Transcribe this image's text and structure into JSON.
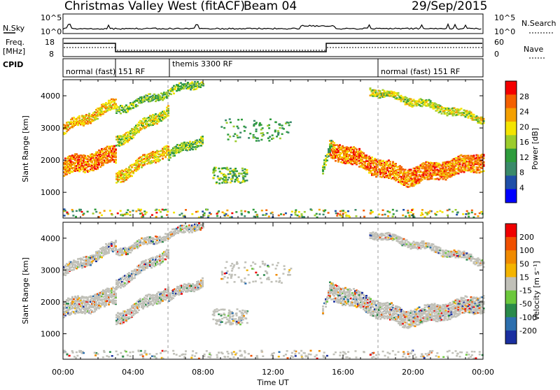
{
  "header": {
    "station": "Christmas Valley West (fitACF)",
    "beam": "Beam 04",
    "date": "29/Sep/2015"
  },
  "noise_panel": {
    "left_label": "N.Sky",
    "right_label": "N.Search",
    "left_ticks": [
      "10^5",
      "10^0"
    ],
    "right_ticks": [
      "10^5",
      "10^0"
    ]
  },
  "freq_panel": {
    "left_label_1": "Freq.",
    "left_label_2": "[MHz]",
    "right_label": "Nave",
    "left_ticks": [
      "18",
      "8"
    ],
    "right_ticks": [
      "60",
      "0"
    ]
  },
  "cpid": {
    "label": "CPID",
    "segments": [
      {
        "name": "normal (fast) 151 RF",
        "start_h": 0,
        "end_h": 3
      },
      {
        "name": "themis 3300 RF",
        "start_h": 6,
        "end_h": 18
      },
      {
        "name": "normal (fast) 151 RF",
        "start_h": 18,
        "end_h": 24
      }
    ]
  },
  "colors": {
    "power_scale": [
      "#0000ff",
      "#1f4fa8",
      "#3a8a6a",
      "#2e9c3c",
      "#9ccc2c",
      "#f4e400",
      "#f4a000",
      "#f46000",
      "#f40000"
    ],
    "velocity_scale": [
      "#1a2fa0",
      "#2d6fae",
      "#2a8a4a",
      "#6cc83c",
      "#c0c0b8",
      "#f4b400",
      "#f08a00",
      "#f05000",
      "#f00000"
    ]
  },
  "chart_data": [
    {
      "type": "heatmap",
      "name": "power",
      "ylabel": "Slant Range [km]",
      "yticks": [
        1000,
        2000,
        3000,
        4000
      ],
      "ylim": [
        200,
        4500
      ],
      "xlim": [
        0,
        24
      ],
      "colorbar_label": "Power [dB]",
      "colorbar_ticks": [
        "28",
        "24",
        "20",
        "16",
        "12",
        "8",
        "4"
      ],
      "clim": [
        0,
        32
      ]
    },
    {
      "type": "heatmap",
      "name": "velocity",
      "ylabel": "Slant Range [km]",
      "yticks": [
        1000,
        2000,
        3000,
        4000
      ],
      "ylim": [
        200,
        4500
      ],
      "xlim": [
        0,
        24
      ],
      "xlabel": "Time UT",
      "xticks": [
        "00:00",
        "04:00",
        "08:00",
        "12:00",
        "16:00",
        "20:00",
        "00:00"
      ],
      "colorbar_label": "Velocity [m s⁻¹]",
      "colorbar_ticks": [
        "200",
        "100",
        "50",
        "15",
        "-15",
        "-50",
        "-100",
        "-200"
      ],
      "clim": [
        -250,
        250
      ]
    }
  ]
}
